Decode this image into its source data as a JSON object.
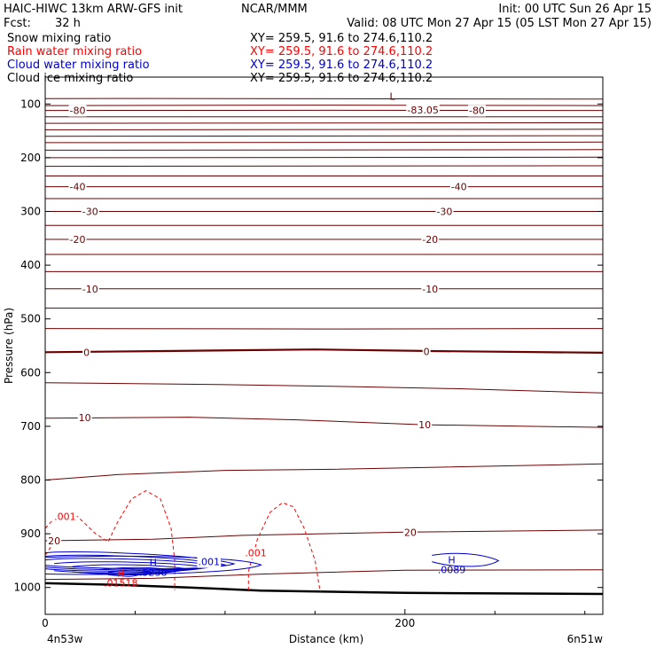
{
  "header": {
    "model": "HAIC-HIWC 13km ARW-GFS init",
    "org": "NCAR/MMM",
    "init": "Init: 00 UTC Sun 26 Apr 15",
    "fcst_label": "Fcst:",
    "fcst_value": "32 h",
    "valid": "Valid: 08 UTC Mon 27 Apr 15 (05 LST Mon 27 Apr 15)"
  },
  "fields": [
    {
      "name": "Snow mixing ratio",
      "xy": "XY= 259.5, 91.6 to 274.6,110.2",
      "color": "#000000"
    },
    {
      "name": "Rain water mixing ratio",
      "xy": "XY= 259.5, 91.6 to 274.6,110.2",
      "color": "#ff0000"
    },
    {
      "name": "Cloud water mixing ratio",
      "xy": "XY= 259.5, 91.6 to 274.6,110.2",
      "color": "#0000cc"
    },
    {
      "name": "Cloud ice mixing ratio",
      "xy": "XY= 259.5, 91.6 to 274.6,110.2",
      "color": "#000000"
    }
  ],
  "chart_data": {
    "type": "cross-section",
    "ylabel": "Pressure (hPa)",
    "xlabel": "Distance (km)",
    "yticks": [
      "100",
      "200",
      "300",
      "400",
      "500",
      "600",
      "700",
      "800",
      "900",
      "1000"
    ],
    "xticks": [
      "0",
      "200"
    ],
    "left_endpoint": "4n53w",
    "right_endpoint": "6n51w",
    "xlim": [
      0,
      310
    ],
    "ylim": [
      1050,
      50
    ],
    "colors": {
      "temperature": "#6b0000",
      "rain": "#ff0000",
      "cloud_water": "#0000cc",
      "terrain": "#000000"
    },
    "temperature_labels": [
      {
        "text": "-80",
        "x": 18,
        "p": 112
      },
      {
        "text": "-83.05",
        "x": 210,
        "p": 111
      },
      {
        "text": "-80",
        "x": 240,
        "p": 112
      },
      {
        "text": "-40",
        "x": 18,
        "p": 254
      },
      {
        "text": "-40",
        "x": 230,
        "p": 254
      },
      {
        "text": "-30",
        "x": 25,
        "p": 300
      },
      {
        "text": "-30",
        "x": 222,
        "p": 300
      },
      {
        "text": "-20",
        "x": 18,
        "p": 352
      },
      {
        "text": "-20",
        "x": 214,
        "p": 352
      },
      {
        "text": "-10",
        "x": 25,
        "p": 444
      },
      {
        "text": "-10",
        "x": 214,
        "p": 444
      },
      {
        "text": "0",
        "x": 23,
        "p": 562
      },
      {
        "text": "0",
        "x": 212,
        "p": 561
      },
      {
        "text": "10",
        "x": 22,
        "p": 684
      },
      {
        "text": "10",
        "x": 211,
        "p": 697
      },
      {
        "text": "20",
        "x": 5,
        "p": 913
      },
      {
        "text": "20",
        "x": 203,
        "p": 897
      }
    ],
    "extrema": [
      {
        "type": "L",
        "x": 193,
        "p": 92,
        "value": ""
      },
      {
        "type": "H",
        "x": 60,
        "p": 960,
        "value": ".5238"
      },
      {
        "type": "H",
        "x": 42,
        "p": 980,
        "value": ".01518"
      },
      {
        "type": "H",
        "x": 226,
        "p": 955,
        "value": ".0089"
      }
    ],
    "contour_labels": [
      {
        "text": ".001",
        "x": 5,
        "p": 868,
        "color": "rain"
      },
      {
        "text": ".001",
        "x": 111,
        "p": 935,
        "color": "rain"
      },
      {
        "text": ".001",
        "x": 85,
        "p": 952,
        "color": "cloud_water"
      }
    ]
  }
}
